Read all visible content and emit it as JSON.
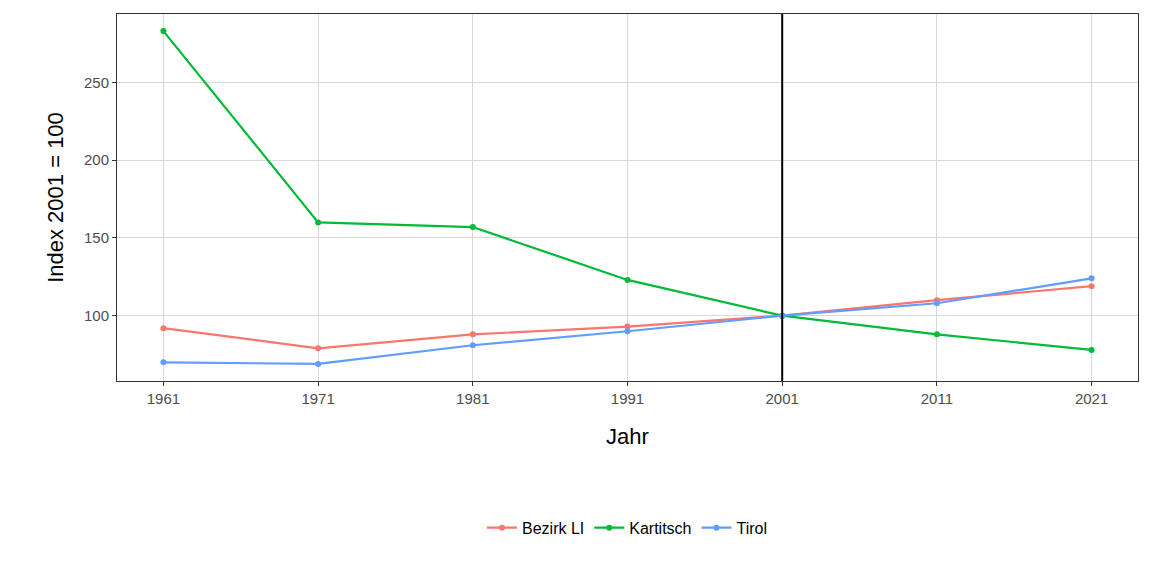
{
  "chart_data": {
    "type": "line",
    "x_label": "Jahr",
    "y_label": "Index 2001 = 100",
    "x": [
      1961,
      1971,
      1981,
      1991,
      2001,
      2011,
      2021
    ],
    "series": [
      {
        "name": "Bezirk LI",
        "color": "#F8766D",
        "marker": "circle",
        "values": [
          92,
          79,
          88,
          93,
          100,
          110,
          119
        ]
      },
      {
        "name": "Kartitsch",
        "color": "#00BA38",
        "marker": "circle",
        "values": [
          283,
          160,
          157,
          123,
          100,
          88,
          78
        ]
      },
      {
        "name": "Tirol",
        "color": "#619CFF",
        "marker": "circle",
        "values": [
          70,
          69,
          81,
          90,
          100,
          108,
          124
        ]
      }
    ],
    "xlim": [
      1958,
      2024
    ],
    "xticks": [
      1961,
      1971,
      1981,
      1991,
      2001,
      2011,
      2021
    ],
    "ylim": [
      58,
      294
    ],
    "yticks": [
      100,
      150,
      200,
      250
    ],
    "vline": 2001,
    "grid": true,
    "legend": "bottom"
  }
}
